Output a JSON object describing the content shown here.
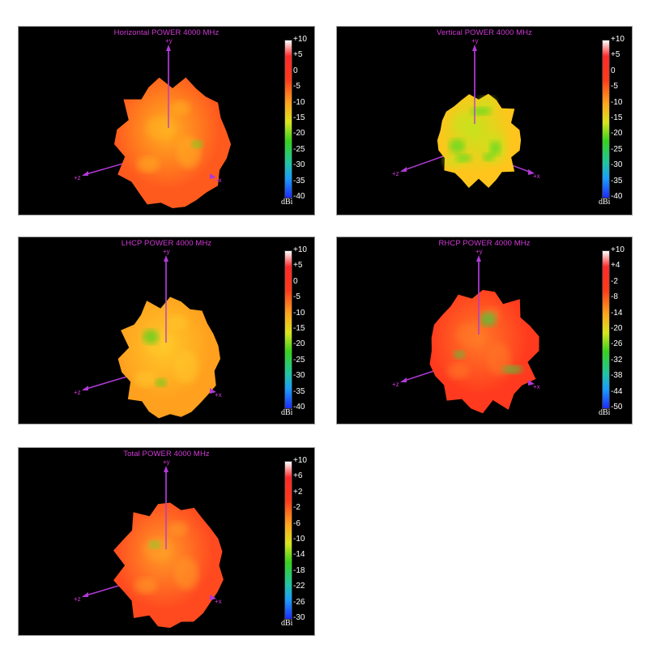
{
  "panels": [
    {
      "title": "Horizontal POWER 4000  MHz",
      "scale": [
        "+10",
        "+5",
        "0",
        "-5",
        "-10",
        "-15",
        "-20",
        "-25",
        "-30",
        "-35",
        "-40"
      ],
      "unit": "dBi",
      "axes": {
        "y": "+y",
        "z": "+z",
        "x": "+x"
      },
      "body_color": "#ff5a1e",
      "highlight_color": "#ffb020",
      "accent_color": "#6ad41a",
      "green_amount": 0.1
    },
    {
      "title": "Vertical POWER 4000  MHz",
      "scale": [
        "+10",
        "+5",
        "0",
        "-5",
        "-10",
        "-15",
        "-20",
        "-25",
        "-30",
        "-35",
        "-40"
      ],
      "unit": "dBi",
      "axes": {
        "y": "+y",
        "z": "+z",
        "x": "+x"
      },
      "body_color": "#ffc51c",
      "highlight_color": "#c8e21c",
      "accent_color": "#58dc22",
      "green_amount": 0.5
    },
    {
      "title": "LHCP POWER 4000  MHz",
      "scale": [
        "+10",
        "+5",
        "0",
        "-5",
        "-10",
        "-15",
        "-20",
        "-25",
        "-30",
        "-35",
        "-40"
      ],
      "unit": "dBi",
      "axes": {
        "y": "+y",
        "z": "+z",
        "x": "+x"
      },
      "body_color": "#ffa01e",
      "highlight_color": "#ffc829",
      "accent_color": "#52d21c",
      "green_amount": 0.2
    },
    {
      "title": "RHCP POWER 4000  MHz",
      "scale": [
        "+10",
        "+4",
        "-2",
        "-8",
        "-14",
        "-20",
        "-26",
        "-32",
        "-38",
        "-44",
        "-50"
      ],
      "unit": "dBi",
      "axes": {
        "y": "+y",
        "z": "+z",
        "x": "+x"
      },
      "body_color": "#ff3a1e",
      "highlight_color": "#ff7a26",
      "accent_color": "#4ec63a",
      "green_amount": 0.25
    },
    {
      "title": "Total POWER 4000  MHz",
      "scale": [
        "+10",
        "+6",
        "+2",
        "-2",
        "-6",
        "-10",
        "-14",
        "-18",
        "-22",
        "-26",
        "-30"
      ],
      "unit": "dBi",
      "axes": {
        "y": "+y",
        "z": "+z",
        "x": "+x"
      },
      "body_color": "#ff4a20",
      "highlight_color": "#ff9c26",
      "accent_color": "#7ad42a",
      "green_amount": 0.12
    }
  ]
}
